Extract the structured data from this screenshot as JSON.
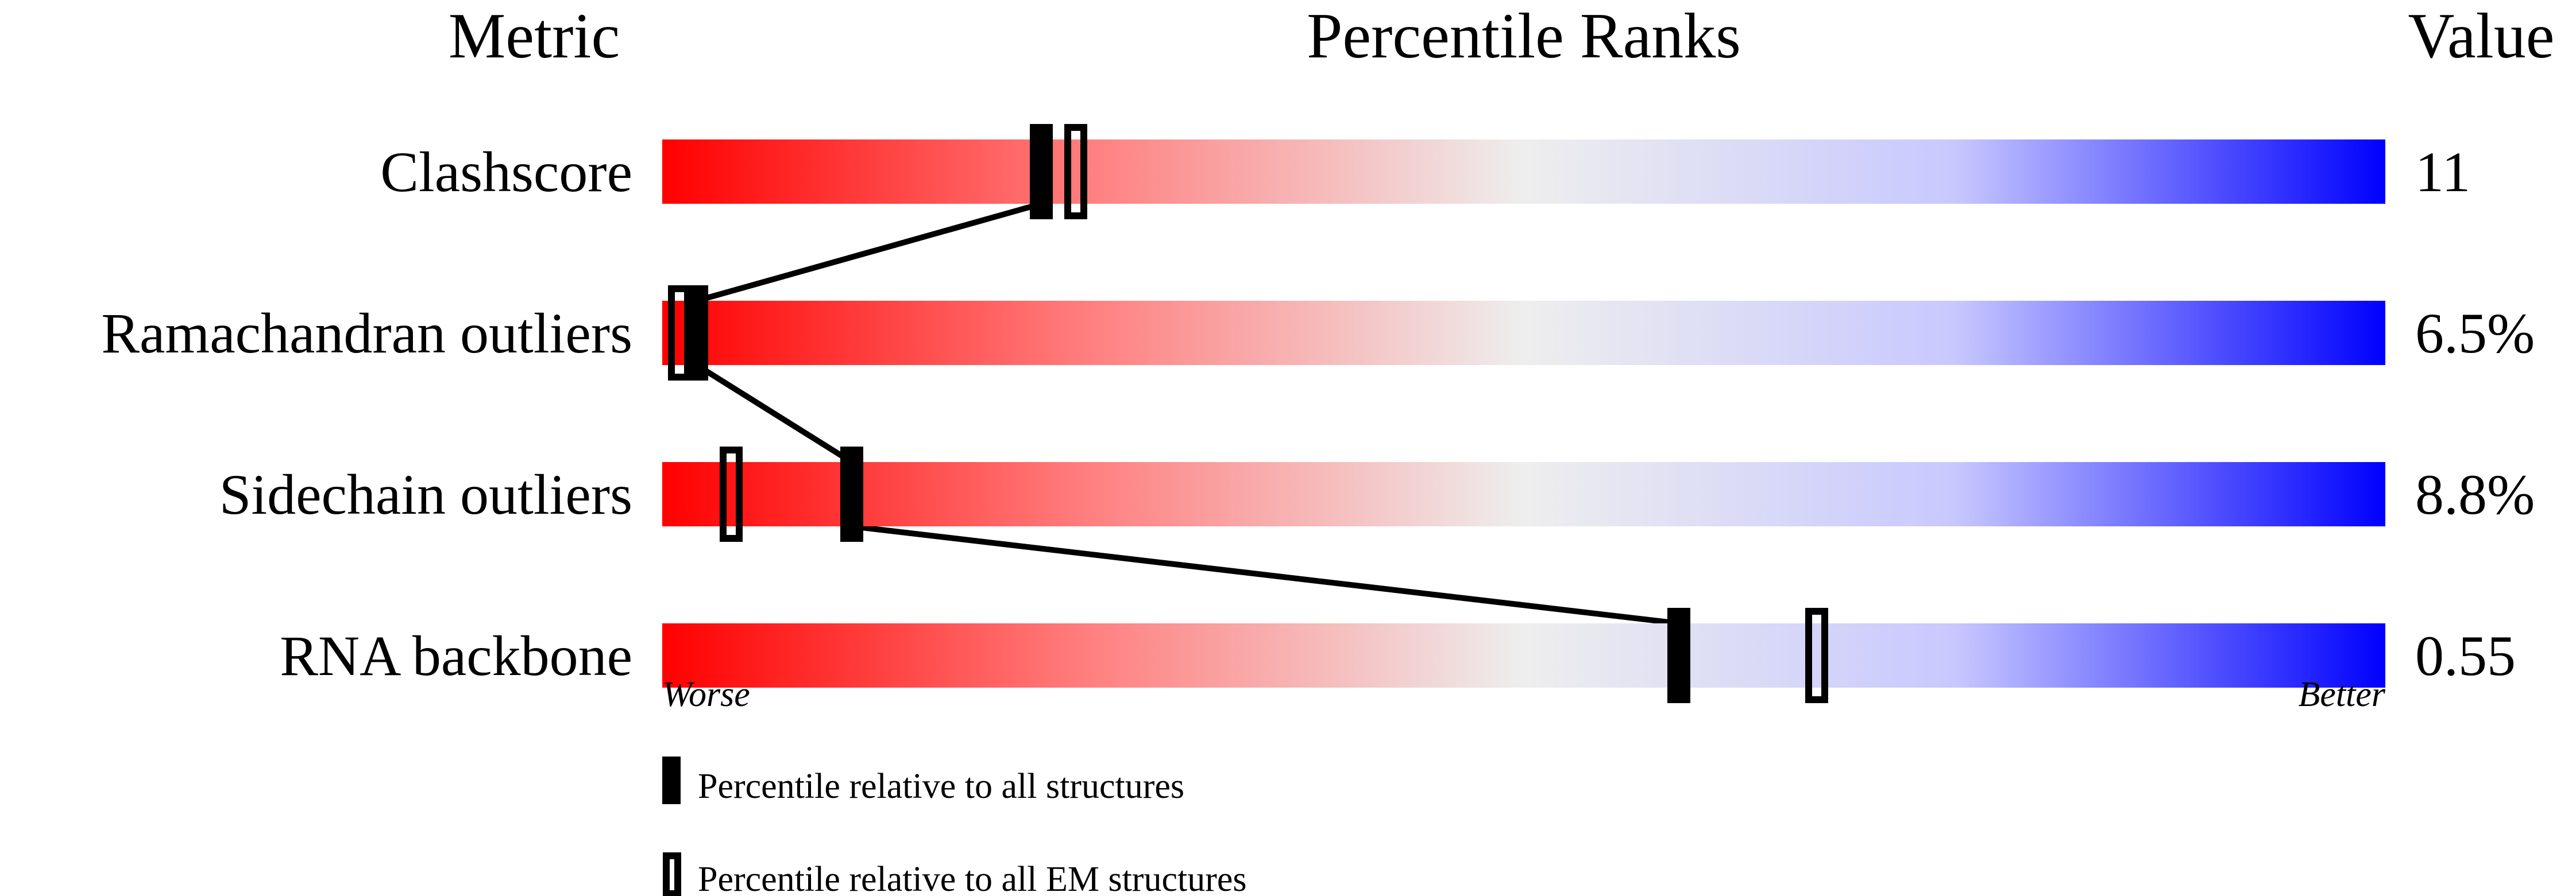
{
  "chart_data": {
    "type": "percentile-bar",
    "headers": {
      "metric": "Metric",
      "ranks": "Percentile Ranks",
      "value": "Value"
    },
    "axis": {
      "left": "Worse",
      "right": "Better",
      "range": [
        0,
        100
      ]
    },
    "gradient_colors": {
      "worse": "#ff0000",
      "middle": "#eeeeee",
      "better": "#0000ff"
    },
    "rows": [
      {
        "metric": "Clashscore",
        "value": "11",
        "percentile_all": 22,
        "percentile_em": 24
      },
      {
        "metric": "Ramachandran outliers",
        "value": "6.5%",
        "percentile_all": 2,
        "percentile_em": 1
      },
      {
        "metric": "Sidechain outliers",
        "value": "8.8%",
        "percentile_all": 11,
        "percentile_em": 4
      },
      {
        "metric": "RNA backbone",
        "value": "0.55",
        "percentile_all": 59,
        "percentile_em": 67
      }
    ],
    "legend": [
      {
        "marker": "filled",
        "label": "Percentile relative to all structures"
      },
      {
        "marker": "open",
        "label": "Percentile relative to all EM structures"
      }
    ]
  }
}
